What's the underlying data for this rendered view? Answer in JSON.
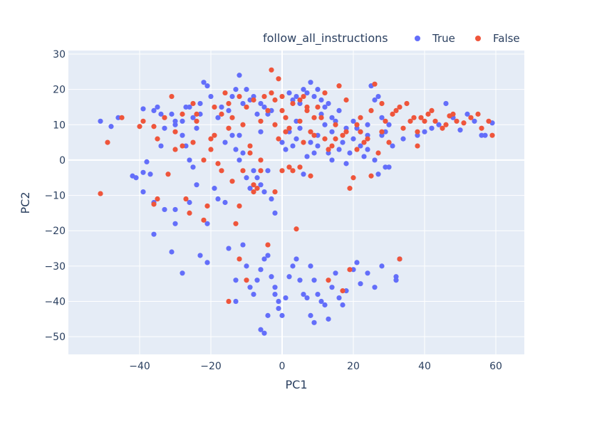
{
  "chart_data": {
    "type": "scatter",
    "title": "",
    "xlabel": "PC1",
    "ylabel": "PC2",
    "xlim": [
      -60,
      68
    ],
    "ylim": [
      -55,
      31
    ],
    "xticks": [
      -40,
      -20,
      0,
      20,
      40,
      60
    ],
    "yticks": [
      -50,
      -40,
      -30,
      -20,
      -10,
      0,
      10,
      20,
      30
    ],
    "grid": true,
    "legend": {
      "title": "follow_all_instructions",
      "position": "top-right"
    },
    "series": [
      {
        "name": "True",
        "color": "#636efa",
        "points": [
          [
            -51,
            11
          ],
          [
            -48,
            9.5
          ],
          [
            -42,
            -4.5
          ],
          [
            -41,
            -5
          ],
          [
            -39,
            -3.5
          ],
          [
            -38,
            -0.5
          ],
          [
            -37,
            -4
          ],
          [
            -39,
            -9
          ],
          [
            -36,
            -21
          ],
          [
            -36,
            -12
          ],
          [
            -35,
            15
          ],
          [
            -34,
            4
          ],
          [
            -33,
            -14
          ],
          [
            -31,
            -26
          ],
          [
            -30,
            -18
          ],
          [
            -30,
            -14
          ],
          [
            -39,
            14.5
          ],
          [
            -36,
            14
          ],
          [
            -34,
            13
          ],
          [
            -31,
            13
          ],
          [
            -30,
            10
          ],
          [
            -28,
            11
          ],
          [
            -27,
            15
          ],
          [
            -26,
            15
          ],
          [
            -25,
            12
          ],
          [
            -24,
            9
          ],
          [
            -23,
            16
          ],
          [
            -22,
            22
          ],
          [
            -21,
            21
          ],
          [
            -20,
            18
          ],
          [
            -28,
            7
          ],
          [
            -27,
            4
          ],
          [
            -26,
            0
          ],
          [
            -25,
            -2
          ],
          [
            -24,
            -7
          ],
          [
            -26,
            -12
          ],
          [
            -28,
            -32
          ],
          [
            -23,
            -27
          ],
          [
            -21,
            -29
          ],
          [
            -21,
            -18
          ],
          [
            -19,
            -8
          ],
          [
            -18,
            -11
          ],
          [
            -16,
            -12
          ],
          [
            -17,
            15
          ],
          [
            -15,
            14
          ],
          [
            -14,
            18
          ],
          [
            -13,
            20
          ],
          [
            -12,
            24
          ],
          [
            -11,
            16
          ],
          [
            -10,
            20
          ],
          [
            -9,
            17
          ],
          [
            -8,
            18
          ],
          [
            -7,
            13
          ],
          [
            -6,
            16
          ],
          [
            -5,
            15
          ],
          [
            -4,
            13
          ],
          [
            -3,
            14
          ],
          [
            -16,
            5
          ],
          [
            -14,
            7
          ],
          [
            -13,
            3
          ],
          [
            -12,
            0
          ],
          [
            -11,
            2
          ],
          [
            -10,
            -5
          ],
          [
            -9,
            -8
          ],
          [
            -8,
            -3
          ],
          [
            -7,
            -5
          ],
          [
            -6,
            -7
          ],
          [
            -5,
            -9
          ],
          [
            -4,
            -3
          ],
          [
            -3,
            -11
          ],
          [
            -2,
            -15
          ],
          [
            -15,
            -25
          ],
          [
            -13,
            -34
          ],
          [
            -13,
            -40
          ],
          [
            -11,
            -24
          ],
          [
            -10,
            -30
          ],
          [
            -9,
            -36
          ],
          [
            -8,
            -38
          ],
          [
            -7,
            -34
          ],
          [
            -6,
            -31
          ],
          [
            -5,
            -28
          ],
          [
            -4,
            -27
          ],
          [
            -3,
            -33
          ],
          [
            -2,
            -36
          ],
          [
            -1,
            -40
          ],
          [
            -6,
            -48
          ],
          [
            -5,
            -49
          ],
          [
            -4,
            -44
          ],
          [
            -2,
            -38
          ],
          [
            -1,
            -42
          ],
          [
            0,
            -44
          ],
          [
            1,
            -39
          ],
          [
            2,
            -33
          ],
          [
            3,
            -30
          ],
          [
            4,
            -28
          ],
          [
            5,
            -34
          ],
          [
            6,
            -38
          ],
          [
            7,
            -39
          ],
          [
            8,
            -44
          ],
          [
            9,
            -46
          ],
          [
            0,
            5
          ],
          [
            1,
            3
          ],
          [
            2,
            8
          ],
          [
            3,
            4
          ],
          [
            4,
            6
          ],
          [
            5,
            9
          ],
          [
            6,
            -4
          ],
          [
            7,
            1
          ],
          [
            8,
            5
          ],
          [
            9,
            2
          ],
          [
            10,
            4
          ],
          [
            11,
            13
          ],
          [
            12,
            10
          ],
          [
            13,
            2
          ],
          [
            14,
            0
          ],
          [
            2,
            19
          ],
          [
            3,
            17
          ],
          [
            4,
            18
          ],
          [
            5,
            16
          ],
          [
            6,
            20
          ],
          [
            7,
            19
          ],
          [
            8,
            22
          ],
          [
            9,
            18
          ],
          [
            10,
            20
          ],
          [
            11,
            17
          ],
          [
            12,
            15
          ],
          [
            13,
            16
          ],
          [
            14,
            12
          ],
          [
            15,
            11
          ],
          [
            16,
            14
          ],
          [
            8,
            -30
          ],
          [
            9,
            -34
          ],
          [
            10,
            -38
          ],
          [
            11,
            -40
          ],
          [
            12,
            -41
          ],
          [
            13,
            -45
          ],
          [
            14,
            -36
          ],
          [
            15,
            -32
          ],
          [
            16,
            -39
          ],
          [
            17,
            -41
          ],
          [
            18,
            -37
          ],
          [
            16,
            3
          ],
          [
            17,
            5
          ],
          [
            18,
            -1
          ],
          [
            19,
            2
          ],
          [
            20,
            6
          ],
          [
            21,
            9
          ],
          [
            22,
            4
          ],
          [
            23,
            1
          ],
          [
            24,
            7
          ],
          [
            25,
            21
          ],
          [
            26,
            17
          ],
          [
            27,
            18
          ],
          [
            28,
            12
          ],
          [
            29,
            8
          ],
          [
            30,
            10
          ],
          [
            20,
            -31
          ],
          [
            21,
            -29
          ],
          [
            22,
            -35
          ],
          [
            24,
            -32
          ],
          [
            26,
            -36
          ],
          [
            28,
            -30
          ],
          [
            30,
            -2
          ],
          [
            32,
            -33
          ],
          [
            32,
            -34
          ],
          [
            33,
            -28
          ],
          [
            31,
            4
          ],
          [
            20,
            11
          ],
          [
            22,
            8
          ],
          [
            24,
            3
          ],
          [
            26,
            0
          ],
          [
            27,
            -4
          ],
          [
            28,
            7
          ],
          [
            29,
            -2
          ],
          [
            34,
            6
          ],
          [
            38,
            7
          ],
          [
            40,
            8
          ],
          [
            42,
            9
          ],
          [
            44,
            10
          ],
          [
            46,
            16
          ],
          [
            48,
            12
          ],
          [
            50,
            8.5
          ],
          [
            52,
            13
          ],
          [
            54,
            11
          ],
          [
            56,
            7
          ],
          [
            57,
            7
          ],
          [
            59,
            10.5
          ],
          [
            -46,
            12
          ],
          [
            -33,
            9
          ],
          [
            -30,
            11
          ],
          [
            -23,
            13
          ],
          [
            -18,
            12
          ],
          [
            -12,
            7
          ],
          [
            -6,
            8
          ],
          [
            4,
            11
          ],
          [
            10,
            7
          ],
          [
            18,
            9
          ],
          [
            24,
            10
          ],
          [
            14,
            8
          ]
        ]
      },
      {
        "name": "False",
        "color": "#ef553b",
        "points": [
          [
            -51,
            -9.5
          ],
          [
            -49,
            5
          ],
          [
            -45,
            12
          ],
          [
            -40,
            9.5
          ],
          [
            -39,
            11
          ],
          [
            -36,
            9.5
          ],
          [
            -36,
            -12.5
          ],
          [
            -35,
            -11
          ],
          [
            -33,
            12
          ],
          [
            -32,
            -4
          ],
          [
            -31,
            18
          ],
          [
            -30,
            8
          ],
          [
            -28,
            13
          ],
          [
            -27,
            -11
          ],
          [
            -26,
            -15
          ],
          [
            -25,
            16
          ],
          [
            -24,
            11
          ],
          [
            -22,
            0
          ],
          [
            -21,
            -13
          ],
          [
            -20,
            6
          ],
          [
            -19,
            7
          ],
          [
            -18,
            -1
          ],
          [
            -17,
            13
          ],
          [
            -16,
            19
          ],
          [
            -15,
            16
          ],
          [
            -14,
            12
          ],
          [
            -13,
            -18
          ],
          [
            -12,
            -13
          ],
          [
            -11,
            10
          ],
          [
            -10,
            15
          ],
          [
            -9,
            2
          ],
          [
            -8,
            -7
          ],
          [
            -7,
            -8
          ],
          [
            -6,
            -3
          ],
          [
            -5,
            18
          ],
          [
            -4,
            14
          ],
          [
            -3,
            25.5
          ],
          [
            -2,
            17
          ],
          [
            -1,
            23
          ],
          [
            0,
            14
          ],
          [
            1,
            12
          ],
          [
            2,
            9
          ],
          [
            3,
            -3
          ],
          [
            4,
            -19.5
          ],
          [
            5,
            17
          ],
          [
            6,
            18
          ],
          [
            7,
            14
          ],
          [
            8,
            8
          ],
          [
            9,
            7
          ],
          [
            10,
            15
          ],
          [
            11,
            12
          ],
          [
            12,
            6
          ],
          [
            13,
            3
          ],
          [
            14,
            4
          ],
          [
            15,
            10
          ],
          [
            16,
            21
          ],
          [
            17,
            7
          ],
          [
            18,
            8
          ],
          [
            19,
            -8
          ],
          [
            20,
            -5
          ],
          [
            21,
            10
          ],
          [
            22,
            8
          ],
          [
            23,
            5
          ],
          [
            24,
            6
          ],
          [
            25,
            -4.5
          ],
          [
            26,
            21.5
          ],
          [
            27,
            2
          ],
          [
            28,
            8
          ],
          [
            29,
            11
          ],
          [
            30,
            5
          ],
          [
            31,
            13
          ],
          [
            32,
            14
          ],
          [
            33,
            15
          ],
          [
            34,
            9
          ],
          [
            35,
            16
          ],
          [
            36,
            11
          ],
          [
            37,
            12
          ],
          [
            38,
            8
          ],
          [
            39,
            12
          ],
          [
            40,
            11
          ],
          [
            41,
            13
          ],
          [
            42,
            14
          ],
          [
            43,
            11
          ],
          [
            45,
            9
          ],
          [
            46,
            10
          ],
          [
            47,
            12.5
          ],
          [
            48,
            13
          ],
          [
            49,
            11
          ],
          [
            51,
            10.5
          ],
          [
            53,
            12
          ],
          [
            55,
            13
          ],
          [
            56,
            9
          ],
          [
            58,
            11
          ],
          [
            59,
            7
          ],
          [
            38,
            4
          ],
          [
            33,
            -28
          ],
          [
            19,
            -31
          ],
          [
            17,
            -37
          ],
          [
            13,
            -34
          ],
          [
            -15,
            -40
          ],
          [
            -12,
            -28
          ],
          [
            -10,
            -34
          ],
          [
            -4,
            -24
          ],
          [
            -35,
            6
          ],
          [
            -30,
            3
          ],
          [
            -28,
            4
          ],
          [
            -22,
            -17
          ],
          [
            -20,
            3
          ],
          [
            -17,
            -3
          ],
          [
            -14,
            -6
          ],
          [
            -11,
            -3
          ],
          [
            -8,
            -9
          ],
          [
            -6,
            0
          ],
          [
            -2,
            -9
          ],
          [
            0,
            -3
          ],
          [
            2,
            -2
          ],
          [
            5,
            -2
          ],
          [
            8,
            -4.5
          ],
          [
            -12,
            18
          ],
          [
            -8,
            17
          ],
          [
            -3,
            19
          ],
          [
            0,
            18
          ],
          [
            3,
            16
          ],
          [
            7,
            15
          ],
          [
            12,
            19
          ],
          [
            18,
            17
          ],
          [
            22,
            12
          ],
          [
            25,
            14
          ],
          [
            28,
            16
          ],
          [
            -25,
            5
          ],
          [
            -9,
            4
          ],
          [
            -1,
            6
          ],
          [
            6,
            5
          ],
          [
            -24,
            13
          ],
          [
            -19,
            15
          ],
          [
            -15,
            9
          ],
          [
            -6,
            11
          ],
          [
            -2,
            10
          ],
          [
            1,
            8
          ],
          [
            5,
            11
          ],
          [
            9,
            12
          ],
          [
            15,
            6
          ],
          [
            21,
            3
          ]
        ]
      }
    ]
  }
}
